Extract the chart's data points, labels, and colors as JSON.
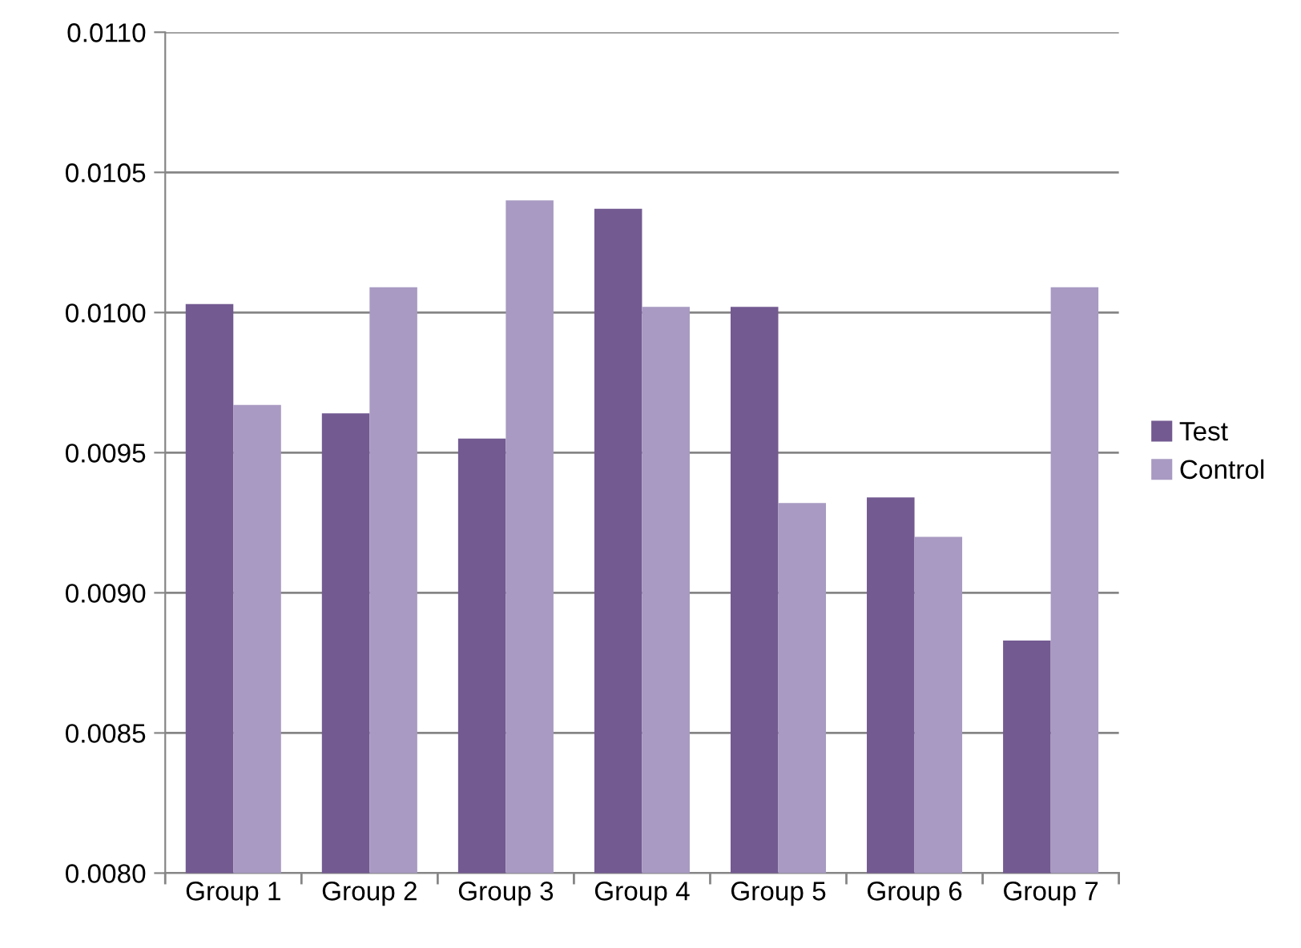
{
  "chart_data": {
    "type": "bar",
    "categories": [
      "Group 1",
      "Group 2",
      "Group 3",
      "Group 4",
      "Group 5",
      "Group 6",
      "Group 7"
    ],
    "series": [
      {
        "name": "Test",
        "color": "#735a91",
        "values": [
          0.01003,
          0.00964,
          0.00955,
          0.01037,
          0.01002,
          0.00934,
          0.00883
        ]
      },
      {
        "name": "Control",
        "color": "#a89ac2",
        "values": [
          0.00967,
          0.01009,
          0.0104,
          0.01002,
          0.00932,
          0.0092,
          0.01009
        ]
      }
    ],
    "ylim": [
      0.008,
      0.011
    ],
    "yticks": [
      {
        "value": 0.008,
        "label": "0.0080"
      },
      {
        "value": 0.0085,
        "label": "0.0085"
      },
      {
        "value": 0.009,
        "label": "0.0090"
      },
      {
        "value": 0.0095,
        "label": "0.0095"
      },
      {
        "value": 0.01,
        "label": "0.0100"
      },
      {
        "value": 0.0105,
        "label": "0.0105"
      },
      {
        "value": 0.011,
        "label": "0.0110"
      }
    ],
    "grid": "y",
    "legend": "right"
  }
}
